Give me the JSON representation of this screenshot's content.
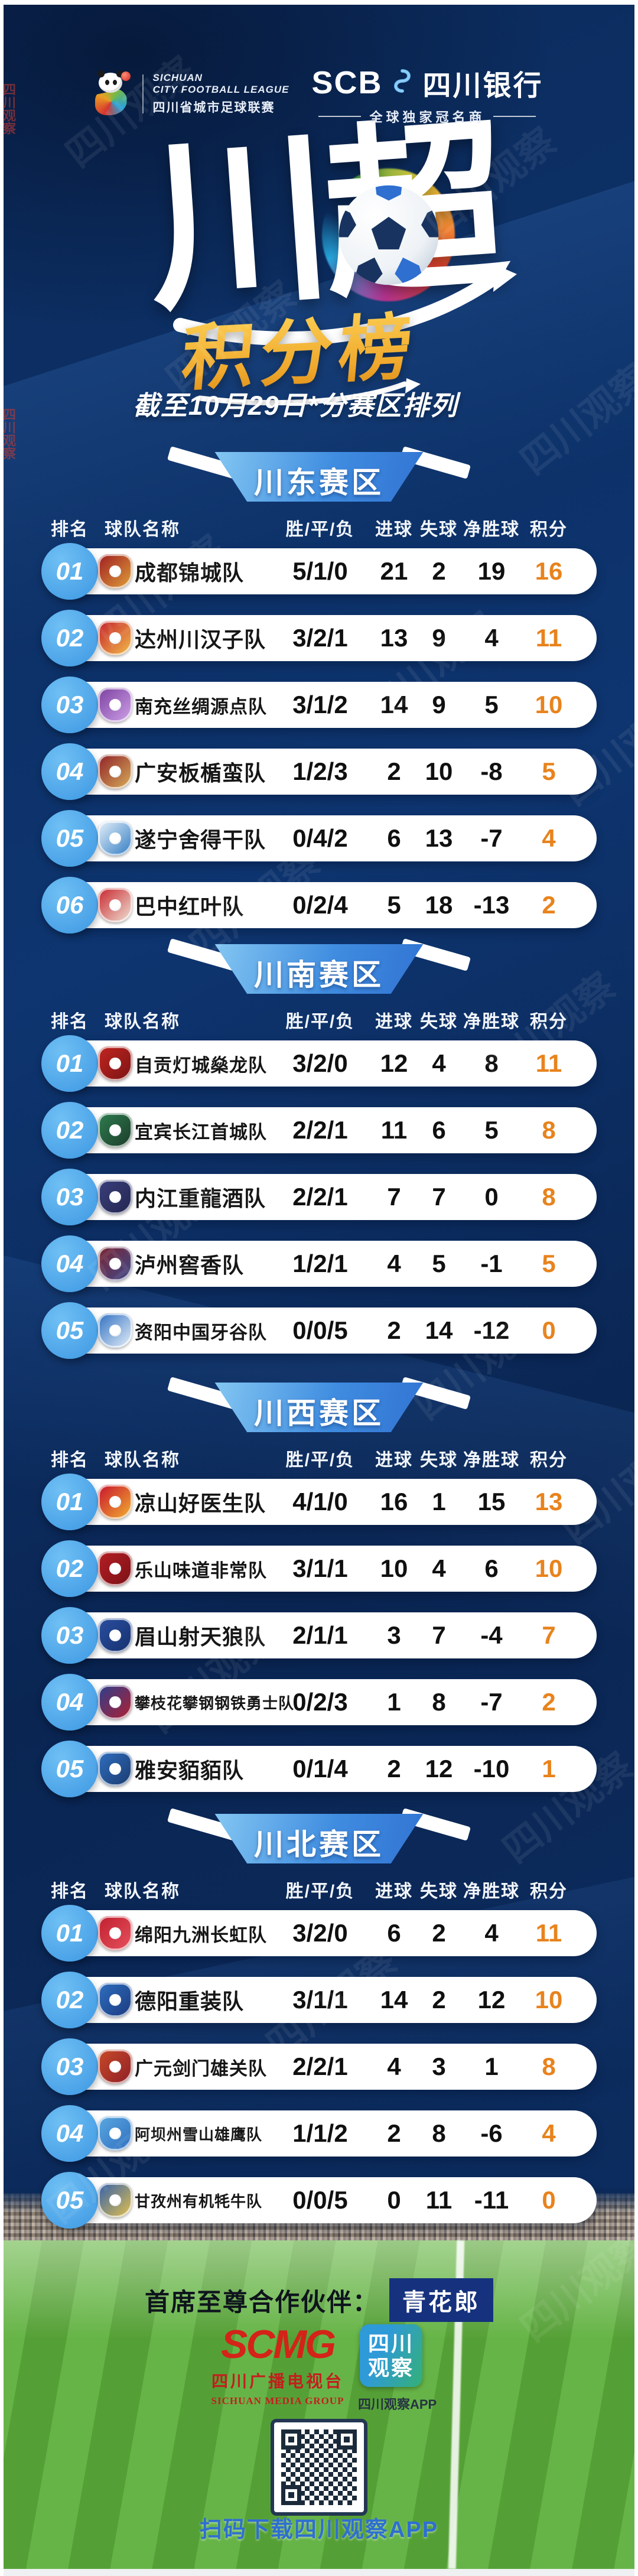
{
  "page": {
    "watermark": "四川观察",
    "league": {
      "name_en1": "SICHUAN",
      "name_en2": "CITY FOOTBALL LEAGUE",
      "name_cn": "四川省城市足球联赛"
    },
    "bank": {
      "abbr": "SCB",
      "name": "四川银行",
      "tagline": "全球独家冠名商"
    },
    "title": "川超",
    "title_sub": "积分榜",
    "date_note": "截至10月29日*分赛区排列"
  },
  "columns": [
    "排名",
    "球队名称",
    "胜/平/负",
    "进球",
    "失球",
    "净胜球",
    "积分"
  ],
  "colors": {
    "points_accent": "#E8831D",
    "rank_circle": "#45A3E8",
    "badge_blue": "#3F8CE0",
    "gold": "#F0A92C"
  },
  "sections": [
    {
      "name": "川东赛区",
      "teams": [
        {
          "rank": "01",
          "name": "成都锦城队",
          "wdl": "5/1/0",
          "gf": "21",
          "ga": "2",
          "gd": "19",
          "pts": "16",
          "logo_colors": [
            "#9e1b21",
            "#e0a23a"
          ]
        },
        {
          "rank": "02",
          "name": "达州川汉子队",
          "wdl": "3/2/1",
          "gf": "13",
          "ga": "9",
          "gd": "4",
          "pts": "11",
          "logo_colors": [
            "#c41e2a",
            "#f3c14b"
          ]
        },
        {
          "rank": "03",
          "name": "南充丝绸源点队",
          "wdl": "3/1/2",
          "gf": "14",
          "ga": "9",
          "gd": "5",
          "pts": "10",
          "logo_colors": [
            "#7b3fa0",
            "#cfa3e8"
          ]
        },
        {
          "rank": "04",
          "name": "广安板楯蛮队",
          "wdl": "1/2/3",
          "gf": "2",
          "ga": "10",
          "gd": "-8",
          "pts": "5",
          "logo_colors": [
            "#8e1f28",
            "#d8b05a"
          ]
        },
        {
          "rank": "05",
          "name": "遂宁舍得干队",
          "wdl": "0/4/2",
          "gf": "6",
          "ga": "13",
          "gd": "-7",
          "pts": "4",
          "logo_colors": [
            "#e8f2fa",
            "#2f7ac2"
          ]
        },
        {
          "rank": "06",
          "name": "巴中红叶队",
          "wdl": "0/2/4",
          "gf": "5",
          "ga": "18",
          "gd": "-13",
          "pts": "2",
          "logo_colors": [
            "#c8242c",
            "#f0e6d8"
          ]
        }
      ]
    },
    {
      "name": "川南赛区",
      "teams": [
        {
          "rank": "01",
          "name": "自贡灯城燊龙队",
          "wdl": "3/2/0",
          "gf": "12",
          "ga": "4",
          "gd": "8",
          "pts": "11",
          "logo_colors": [
            "#c22520",
            "#7a1414"
          ]
        },
        {
          "rank": "02",
          "name": "宜宾长江首城队",
          "wdl": "2/2/1",
          "gf": "11",
          "ga": "6",
          "gd": "5",
          "pts": "8",
          "logo_colors": [
            "#2e7d4f",
            "#1b3b2a"
          ]
        },
        {
          "rank": "03",
          "name": "内江重龍酒队",
          "wdl": "2/2/1",
          "gf": "7",
          "ga": "7",
          "gd": "0",
          "pts": "8",
          "logo_colors": [
            "#3a3f7c",
            "#23264f"
          ]
        },
        {
          "rank": "04",
          "name": "泸州窖香队",
          "wdl": "1/2/1",
          "gf": "4",
          "ga": "5",
          "gd": "-1",
          "pts": "5",
          "logo_colors": [
            "#7c2430",
            "#3d4a8c"
          ]
        },
        {
          "rank": "05",
          "name": "资阳中国牙谷队",
          "wdl": "0/0/5",
          "gf": "2",
          "ga": "14",
          "gd": "-12",
          "pts": "0",
          "logo_colors": [
            "#2f6fc0",
            "#e8f1fa"
          ]
        }
      ]
    },
    {
      "name": "川西赛区",
      "teams": [
        {
          "rank": "01",
          "name": "凉山好医生队",
          "wdl": "4/1/0",
          "gf": "16",
          "ga": "1",
          "gd": "15",
          "pts": "13",
          "logo_colors": [
            "#c8102e",
            "#f2b430"
          ]
        },
        {
          "rank": "02",
          "name": "乐山味道非常队",
          "wdl": "3/1/1",
          "gf": "10",
          "ga": "4",
          "gd": "6",
          "pts": "10",
          "logo_colors": [
            "#b51e24",
            "#7a1216"
          ]
        },
        {
          "rank": "03",
          "name": "眉山射天狼队",
          "wdl": "2/1/1",
          "gf": "3",
          "ga": "7",
          "gd": "-4",
          "pts": "7",
          "logo_colors": [
            "#2a4fa0",
            "#16306e"
          ]
        },
        {
          "rank": "04",
          "name": "攀枝花攀钢钢铁勇士队",
          "wdl": "0/2/3",
          "gf": "1",
          "ga": "8",
          "gd": "-7",
          "pts": "2",
          "logo_colors": [
            "#2a3f8e",
            "#b32030"
          ]
        },
        {
          "rank": "05",
          "name": "雅安貊貊队",
          "wdl": "0/1/4",
          "gf": "2",
          "ga": "12",
          "gd": "-10",
          "pts": "1",
          "logo_colors": [
            "#2f6fc0",
            "#1b3a6e"
          ]
        }
      ]
    },
    {
      "name": "川北赛区",
      "teams": [
        {
          "rank": "01",
          "name": "绵阳九洲长虹队",
          "wdl": "3/2/0",
          "gf": "6",
          "ga": "2",
          "gd": "4",
          "pts": "11",
          "logo_colors": [
            "#c01f2e",
            "#e6525e"
          ]
        },
        {
          "rank": "02",
          "name": "德阳重装队",
          "wdl": "3/1/1",
          "gf": "14",
          "ga": "2",
          "gd": "12",
          "pts": "10",
          "logo_colors": [
            "#2f6fc0",
            "#1b3a7e"
          ]
        },
        {
          "rank": "03",
          "name": "广元剑门雄关队",
          "wdl": "2/2/1",
          "gf": "4",
          "ga": "3",
          "gd": "1",
          "pts": "8",
          "logo_colors": [
            "#c84a28",
            "#8e1f28"
          ]
        },
        {
          "rank": "04",
          "name": "阿坝州雪山雄鹰队",
          "wdl": "1/1/2",
          "gf": "2",
          "ga": "8",
          "gd": "-6",
          "pts": "4",
          "logo_colors": [
            "#5aa8e0",
            "#2f6fc0"
          ]
        },
        {
          "rank": "05",
          "name": "甘孜州有机牦牛队",
          "wdl": "0/0/5",
          "gf": "0",
          "ga": "11",
          "gd": "-11",
          "pts": "0",
          "logo_colors": [
            "#2f5fae",
            "#e8c24a"
          ]
        }
      ]
    }
  ],
  "footer": {
    "partner_label": "首席至尊合作伙伴：",
    "partner_name": "青花郎",
    "smg": {
      "abbr": "SCMG",
      "cn": "四川广播电视台",
      "en": "SICHUAN MEDIA GROUP"
    },
    "watch": {
      "line1": "四川",
      "line2": "观察",
      "caption": "四川观察APP"
    },
    "qr_caption": "扫码下载四川观察APP"
  }
}
